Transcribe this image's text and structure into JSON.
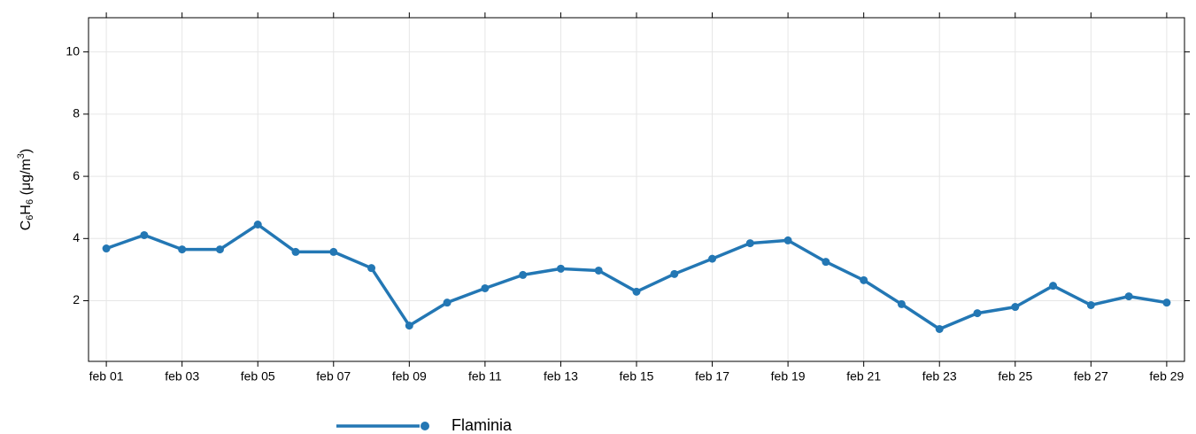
{
  "chart_data": {
    "type": "line",
    "ylabel": [
      "C",
      "6",
      "H",
      "6",
      " (μg/m",
      "3",
      ")"
    ],
    "categories": [
      "feb 01",
      null,
      "feb 03",
      null,
      "feb 05",
      null,
      "feb 07",
      null,
      "feb 09",
      null,
      "feb 11",
      null,
      "feb 13",
      null,
      "feb 15",
      null,
      "feb 17",
      null,
      "feb 19",
      null,
      "feb 21",
      null,
      "feb 23",
      null,
      "feb 25",
      null,
      "feb 27",
      null,
      "feb 29"
    ],
    "series": [
      {
        "name": "Flaminia",
        "color": "#2377b4",
        "values": [
          3.68,
          4.11,
          3.65,
          3.65,
          4.45,
          3.57,
          3.57,
          3.05,
          1.2,
          1.94,
          2.4,
          2.83,
          3.03,
          2.97,
          2.29,
          2.86,
          3.35,
          3.85,
          3.94,
          3.25,
          2.66,
          1.89,
          1.09,
          1.6,
          1.8,
          2.48,
          1.86,
          2.14,
          1.94
        ]
      }
    ],
    "ylim": [
      0.05,
      11.1
    ],
    "yticks": [
      2,
      4,
      6,
      8,
      10
    ],
    "grid": true
  }
}
